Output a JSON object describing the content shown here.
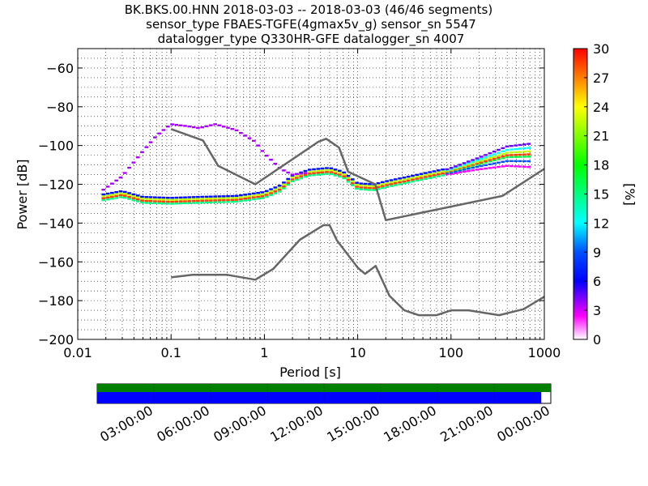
{
  "chart_data": {
    "type": "heatmap",
    "title": [
      "BK.BKS.00.HNN   2018-03-03 -- 2018-03-03  (46/46 segments)",
      "sensor_type FBAES-TGFE(4gmax5v_g) sensor_sn 5547",
      "datalogger_type Q330HR-GFE datalogger_sn 4007"
    ],
    "xlabel": "Period [s]",
    "ylabel": "Power [dB]",
    "xscale": "log",
    "xlim": [
      0.01,
      1000
    ],
    "ylim": [
      -200,
      -50
    ],
    "xticks": [
      "0.01",
      "0.1",
      "1",
      "10",
      "100",
      "1000"
    ],
    "yticks": [
      "−200",
      "−180",
      "−160",
      "−140",
      "−120",
      "−100",
      "−80",
      "−60"
    ],
    "colorbar": {
      "label": "[%]",
      "range": [
        0,
        30
      ],
      "ticks": [
        "0",
        "3",
        "6",
        "9",
        "12",
        "15",
        "18",
        "21",
        "24",
        "27",
        "30"
      ]
    },
    "grid": true,
    "noise_models": {
      "high": [
        [
          0.1,
          -91.5
        ],
        [
          0.22,
          -97.4
        ],
        [
          0.32,
          -110.5
        ],
        [
          0.8,
          -120
        ],
        [
          3.8,
          -98
        ],
        [
          4.6,
          -96.5
        ],
        [
          6.3,
          -101
        ],
        [
          7.9,
          -113.5
        ],
        [
          15.4,
          -120
        ],
        [
          20,
          -138.5
        ],
        [
          354.8,
          -126
        ],
        [
          1000,
          -112
        ]
      ],
      "low": [
        [
          0.1,
          -168
        ],
        [
          0.17,
          -166.7
        ],
        [
          0.4,
          -166.7
        ],
        [
          0.8,
          -169.2
        ],
        [
          1.24,
          -163.7
        ],
        [
          2.4,
          -148.6
        ],
        [
          4.3,
          -141.1
        ],
        [
          5,
          -141.1
        ],
        [
          6,
          -149
        ],
        [
          10,
          -163
        ],
        [
          12,
          -166.2
        ],
        [
          15.6,
          -162.1
        ],
        [
          21.9,
          -177.5
        ],
        [
          31.6,
          -185
        ],
        [
          45,
          -187.5
        ],
        [
          70,
          -187.5
        ],
        [
          101,
          -185
        ],
        [
          154,
          -185
        ],
        [
          328,
          -187.5
        ],
        [
          600,
          -184.4
        ],
        [
          1000,
          -178
        ]
      ]
    },
    "mode_curve": [
      [
        0.02,
        -126.5
      ],
      [
        0.03,
        -125
      ],
      [
        0.05,
        -128
      ],
      [
        0.1,
        -128.5
      ],
      [
        0.2,
        -128
      ],
      [
        0.5,
        -127.5
      ],
      [
        1,
        -125.5
      ],
      [
        1.5,
        -122
      ],
      [
        2,
        -117
      ],
      [
        3,
        -114
      ],
      [
        5,
        -113
      ],
      [
        7,
        -115
      ],
      [
        10,
        -121
      ],
      [
        15,
        -121.5
      ],
      [
        20,
        -120
      ],
      [
        50,
        -116
      ],
      [
        100,
        -113
      ],
      [
        200,
        -109
      ],
      [
        400,
        -105
      ],
      [
        700,
        -104.5
      ]
    ],
    "upper_branch": [
      [
        0.02,
        -122
      ],
      [
        0.03,
        -116
      ],
      [
        0.05,
        -103
      ],
      [
        0.07,
        -95
      ],
      [
        0.1,
        -89
      ],
      [
        0.15,
        -90
      ],
      [
        0.2,
        -91
      ],
      [
        0.3,
        -89
      ],
      [
        0.5,
        -92
      ],
      [
        0.8,
        -98
      ],
      [
        1,
        -104
      ],
      [
        1.5,
        -112
      ],
      [
        2,
        -115
      ],
      [
        3,
        -114
      ]
    ],
    "tail_spread": [
      [
        100,
        1.5
      ],
      [
        200,
        3
      ],
      [
        400,
        5
      ],
      [
        700,
        6
      ]
    ],
    "availability": {
      "time_ticks": [
        "03:00:00",
        "06:00:00",
        "09:00:00",
        "12:00:00",
        "15:00:00",
        "18:00:00",
        "21:00:00",
        "00:00:00"
      ],
      "data_colors": {
        "gaps": "#008000",
        "data": "#0000ff"
      },
      "coverage_fraction": 0.979
    }
  }
}
